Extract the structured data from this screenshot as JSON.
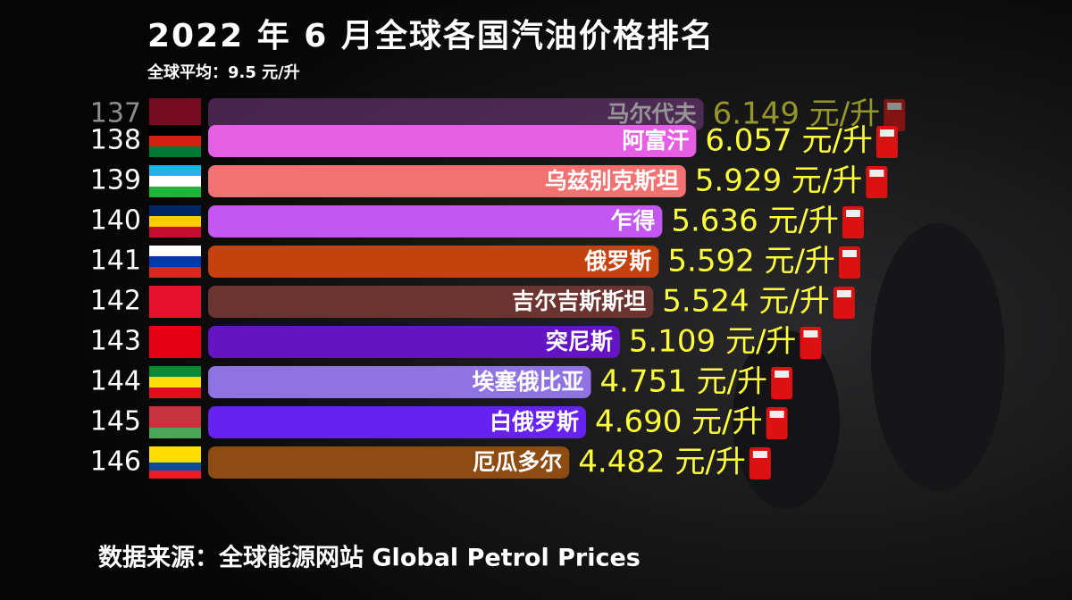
{
  "chart_data": {
    "type": "bar",
    "title": "2022 年 6 月全球各国汽油价格排名",
    "subtitle": "全球平均：9.5 元/升",
    "source": "数据来源：全球能源网站 Global Petrol Prices",
    "ranks": [
      137,
      138,
      139,
      140,
      141,
      142,
      143,
      144,
      145,
      146
    ],
    "categories": [
      "马尔代夫",
      "阿富汗",
      "乌兹别克斯坦",
      "乍得",
      "俄罗斯",
      "吉尔吉斯斯坦",
      "突尼斯",
      "埃塞俄比亚",
      "白俄罗斯",
      "厄瓜多尔"
    ],
    "values": [
      6.149,
      6.057,
      5.929,
      5.636,
      5.592,
      5.524,
      5.109,
      4.751,
      4.69,
      4.482
    ],
    "value_labels": [
      "6.149 元/升",
      "6.057 元/升",
      "5.929 元/升",
      "5.636 元/升",
      "5.592 元/升",
      "5.524 元/升",
      "5.109 元/升",
      "4.751 元/升",
      "4.690 元/升",
      "4.482 元/升"
    ],
    "colors": [
      "#7b3d86",
      "#e45fe4",
      "#f27272",
      "#c457f2",
      "#c5420f",
      "#6b3430",
      "#6514c4",
      "#8f73e3",
      "#6622f0",
      "#8c4c12"
    ]
  }
}
